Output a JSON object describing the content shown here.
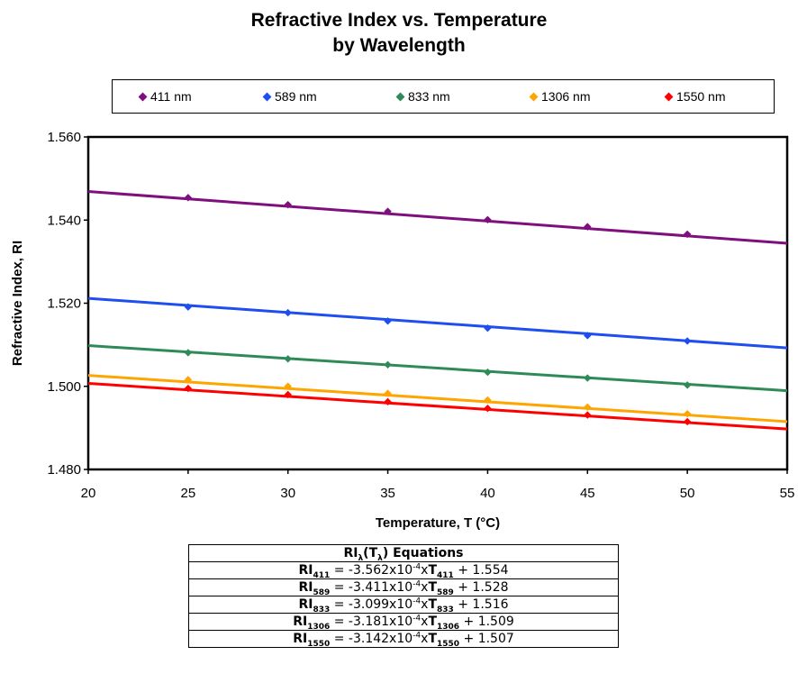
{
  "chart_data": {
    "type": "line",
    "title": "Refractive Index vs. Temperature",
    "subtitle": "by Wavelength",
    "xlabel": "Temperature, T (°C)",
    "ylabel": "Refractive Index, RI",
    "xlim": [
      20,
      55
    ],
    "ylim": [
      1.48,
      1.56
    ],
    "x_ticks": [
      "20",
      "25",
      "30",
      "35",
      "40",
      "45",
      "50",
      "55"
    ],
    "y_ticks": [
      "1.480",
      "1.500",
      "1.520",
      "1.540",
      "1.560"
    ],
    "grid": false,
    "legend_position": "top",
    "series": [
      {
        "name": "411 nm",
        "color": "#7f0f7f",
        "x": [
          25,
          30,
          35,
          40,
          45,
          50
        ],
        "values": [
          1.5454,
          1.5437,
          1.5421,
          1.5401,
          1.5384,
          1.5366
        ],
        "fit": {
          "slope": -0.0003562,
          "intercept": 1.554
        }
      },
      {
        "name": "589 nm",
        "color": "#1e4ef0",
        "x": [
          25,
          30,
          35,
          40,
          45,
          50
        ],
        "values": [
          1.5191,
          1.5177,
          1.5157,
          1.514,
          1.5122,
          1.5109
        ],
        "fit": {
          "slope": -0.0003411,
          "intercept": 1.528
        }
      },
      {
        "name": "833 nm",
        "color": "#2e8b57",
        "x": [
          25,
          30,
          35,
          40,
          45,
          50
        ],
        "values": [
          1.5081,
          1.5066,
          1.5052,
          1.5034,
          1.502,
          1.5003
        ],
        "fit": {
          "slope": -0.0003099,
          "intercept": 1.516
        }
      },
      {
        "name": "1306 nm",
        "color": "#ffa500",
        "x": [
          25,
          30,
          35,
          40,
          45,
          50
        ],
        "values": [
          1.5016,
          1.5,
          1.4983,
          1.4967,
          1.495,
          1.4934
        ],
        "fit": {
          "slope": -0.0003181,
          "intercept": 1.509
        }
      },
      {
        "name": "1550 nm",
        "color": "#ff0000",
        "x": [
          25,
          30,
          35,
          40,
          45,
          50
        ],
        "values": [
          1.4995,
          1.498,
          1.4963,
          1.4947,
          1.4931,
          1.4915
        ],
        "fit": {
          "slope": -0.0003142,
          "intercept": 1.507
        }
      }
    ]
  },
  "equations": {
    "header_main": "RI",
    "header_sub": "λ",
    "header_paren_open": "(T",
    "header_paren_sub": "λ",
    "header_rest": ") Equations",
    "rows": [
      {
        "lhs": "RI",
        "sub": "411",
        "eq": " = -3.562x10",
        "exp": "-4",
        "x": "x",
        "t": "T",
        "tsub": "411",
        "rest": " + 1.554"
      },
      {
        "lhs": "RI",
        "sub": "589",
        "eq": " = -3.411x10",
        "exp": "-4",
        "x": "x",
        "t": "T",
        "tsub": "589",
        "rest": " + 1.528"
      },
      {
        "lhs": "RI",
        "sub": "833",
        "eq": " = -3.099x10",
        "exp": "-4",
        "x": "x",
        "t": "T",
        "tsub": "833",
        "rest": " + 1.516"
      },
      {
        "lhs": "RI",
        "sub": "1306",
        "eq": " = -3.181x10",
        "exp": "-4",
        "x": "x",
        "t": "T",
        "tsub": "1306",
        "rest": " + 1.509"
      },
      {
        "lhs": "RI",
        "sub": "1550",
        "eq": " = -3.142x10",
        "exp": "-4",
        "x": "x",
        "t": "T",
        "tsub": "1550",
        "rest": " + 1.507"
      }
    ]
  }
}
